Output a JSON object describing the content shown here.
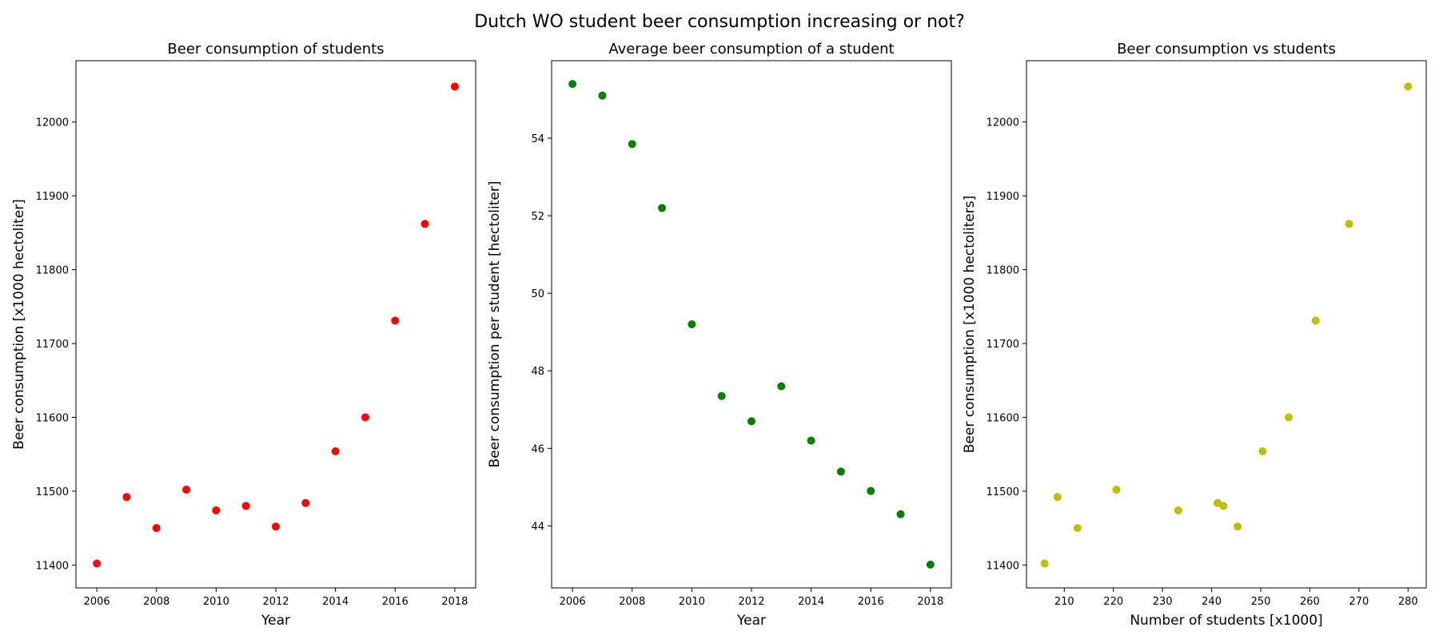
{
  "figure": {
    "title": "Dutch WO student beer consumption increasing or not?"
  },
  "chart_data": [
    {
      "type": "scatter",
      "title": "Beer consumption of students",
      "xlabel": "Year",
      "ylabel": "Beer consumption [x1000 hectoliter]",
      "xlim": [
        2005.3,
        2018.7
      ],
      "ylim": [
        11369,
        12083
      ],
      "xticks": [
        2006,
        2008,
        2010,
        2012,
        2014,
        2016,
        2018
      ],
      "yticks": [
        11400,
        11500,
        11600,
        11700,
        11800,
        11900,
        12000
      ],
      "color": "#ff0000",
      "grid": false,
      "x": [
        2006,
        2007,
        2008,
        2009,
        2010,
        2011,
        2012,
        2013,
        2014,
        2015,
        2016,
        2017,
        2018
      ],
      "y": [
        11402,
        11492,
        11450,
        11502,
        11474,
        11480,
        11452,
        11484,
        11554,
        11600,
        11731,
        11862,
        12048
      ]
    },
    {
      "type": "scatter",
      "title": "Average beer consumption of a student",
      "xlabel": "Year",
      "ylabel": "Beer consumption per student [hectoliter]",
      "xlim": [
        2005.3,
        2018.7
      ],
      "ylim": [
        42.4,
        56.0
      ],
      "xticks": [
        2006,
        2008,
        2010,
        2012,
        2014,
        2016,
        2018
      ],
      "yticks": [
        44,
        46,
        48,
        50,
        52,
        54
      ],
      "color": "#008000",
      "grid": false,
      "x": [
        2006,
        2007,
        2008,
        2009,
        2010,
        2011,
        2012,
        2013,
        2014,
        2015,
        2016,
        2017,
        2018
      ],
      "y": [
        55.4,
        55.1,
        53.85,
        52.2,
        49.2,
        47.35,
        46.7,
        47.6,
        46.2,
        45.4,
        44.9,
        44.3,
        43.0
      ]
    },
    {
      "type": "scatter",
      "title": "Beer consumption vs students",
      "xlabel": "Number of students [x1000]",
      "ylabel": "Beer consumption [x1000 hectoliters]",
      "xlim": [
        202.3,
        283.7
      ],
      "ylim": [
        11369,
        12083
      ],
      "xticks": [
        210,
        220,
        230,
        240,
        250,
        260,
        270,
        280
      ],
      "yticks": [
        11400,
        11500,
        11600,
        11700,
        11800,
        11900,
        12000
      ],
      "color": "#bfbf00",
      "grid": false,
      "x": [
        206.0,
        208.6,
        212.7,
        220.6,
        233.2,
        241.2,
        242.4,
        245.3,
        250.4,
        255.7,
        261.2,
        268.0,
        280.0
      ],
      "y": [
        11402,
        11492,
        11450,
        11502,
        11474,
        11484,
        11480,
        11452,
        11554,
        11600,
        11731,
        11862,
        12048
      ]
    }
  ]
}
